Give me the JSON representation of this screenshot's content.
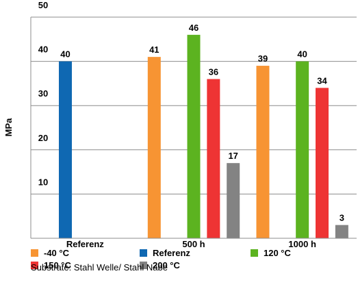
{
  "chart_data": {
    "type": "bar",
    "ylabel": "MPa",
    "ylim": [
      0,
      50
    ],
    "yticks": [
      "10",
      "20",
      "30",
      "40",
      "50"
    ],
    "grid": true,
    "categories": [
      "Referenz",
      "500 h",
      "1000 h"
    ],
    "series": [
      {
        "name": "-40 °C",
        "color": "#f79433",
        "values": [
          null,
          41,
          39
        ]
      },
      {
        "name": "Referenz",
        "color": "#0f68b2",
        "values": [
          40,
          null,
          null
        ]
      },
      {
        "name": "120 °C",
        "color": "#5cb320",
        "values": [
          null,
          46,
          40
        ]
      },
      {
        "name": "150 °C",
        "color": "#ee3434",
        "values": [
          null,
          36,
          34
        ]
      },
      {
        "name": "200 °C",
        "color": "#838383",
        "values": [
          null,
          17,
          3
        ]
      }
    ],
    "legend_position": "bottom"
  },
  "caption": "Substrate: Stahl Welle/ Stahl Nabe"
}
